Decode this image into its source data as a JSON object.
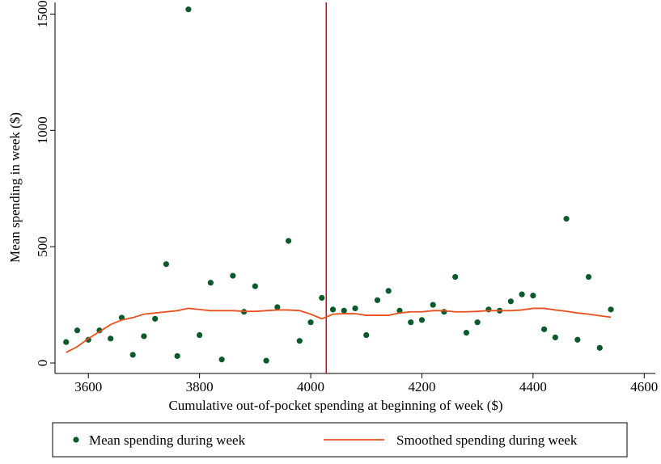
{
  "chart_data": {
    "type": "scatter",
    "x_label": "Cumulative out-of-pocket spending at beginning of week ($)",
    "y_label": "Mean spending in week ($)",
    "x": [
      3560,
      3580,
      3600,
      3620,
      3640,
      3660,
      3680,
      3700,
      3720,
      3740,
      3760,
      3780,
      3800,
      3820,
      3840,
      3860,
      3880,
      3900,
      3920,
      3940,
      3960,
      3980,
      4000,
      4020,
      4040,
      4060,
      4080,
      4100,
      4120,
      4140,
      4160,
      4180,
      4200,
      4220,
      4240,
      4260,
      4280,
      4300,
      4320,
      4340,
      4360,
      4380,
      4400,
      4420,
      4440,
      4460,
      4480,
      4500,
      4520,
      4540
    ],
    "series": [
      {
        "name": "Mean spending during week",
        "color": "#0b5a2c",
        "kind": "scatter",
        "values": [
          90,
          140,
          100,
          140,
          105,
          195,
          35,
          115,
          190,
          425,
          30,
          1520,
          120,
          345,
          15,
          375,
          220,
          330,
          10,
          240,
          525,
          95,
          175,
          280,
          230,
          225,
          235,
          120,
          270,
          310,
          225,
          175,
          185,
          250,
          220,
          370,
          130,
          175,
          230,
          225,
          265,
          295,
          290,
          145,
          110,
          620,
          100,
          370,
          65,
          230
        ]
      },
      {
        "name": "Smoothed spending during week",
        "color": "#e8501e",
        "kind": "line",
        "values": [
          45,
          70,
          105,
          135,
          165,
          185,
          195,
          210,
          215,
          220,
          225,
          235,
          230,
          225,
          225,
          225,
          222,
          222,
          225,
          228,
          228,
          225,
          210,
          190,
          210,
          212,
          212,
          205,
          205,
          205,
          215,
          220,
          220,
          225,
          225,
          220,
          220,
          222,
          225,
          225,
          225,
          228,
          235,
          235,
          228,
          222,
          215,
          210,
          203,
          197
        ]
      }
    ],
    "vline": 4028,
    "vline_color": "#c8102e",
    "xlim": [
      3540,
      4620
    ],
    "xticks": [
      3600,
      3800,
      4000,
      4200,
      4400,
      4600
    ],
    "ylim": [
      -45,
      1550
    ],
    "yticks": [
      0,
      500,
      1000,
      1500
    ],
    "grid": false,
    "legend": "bottom"
  }
}
